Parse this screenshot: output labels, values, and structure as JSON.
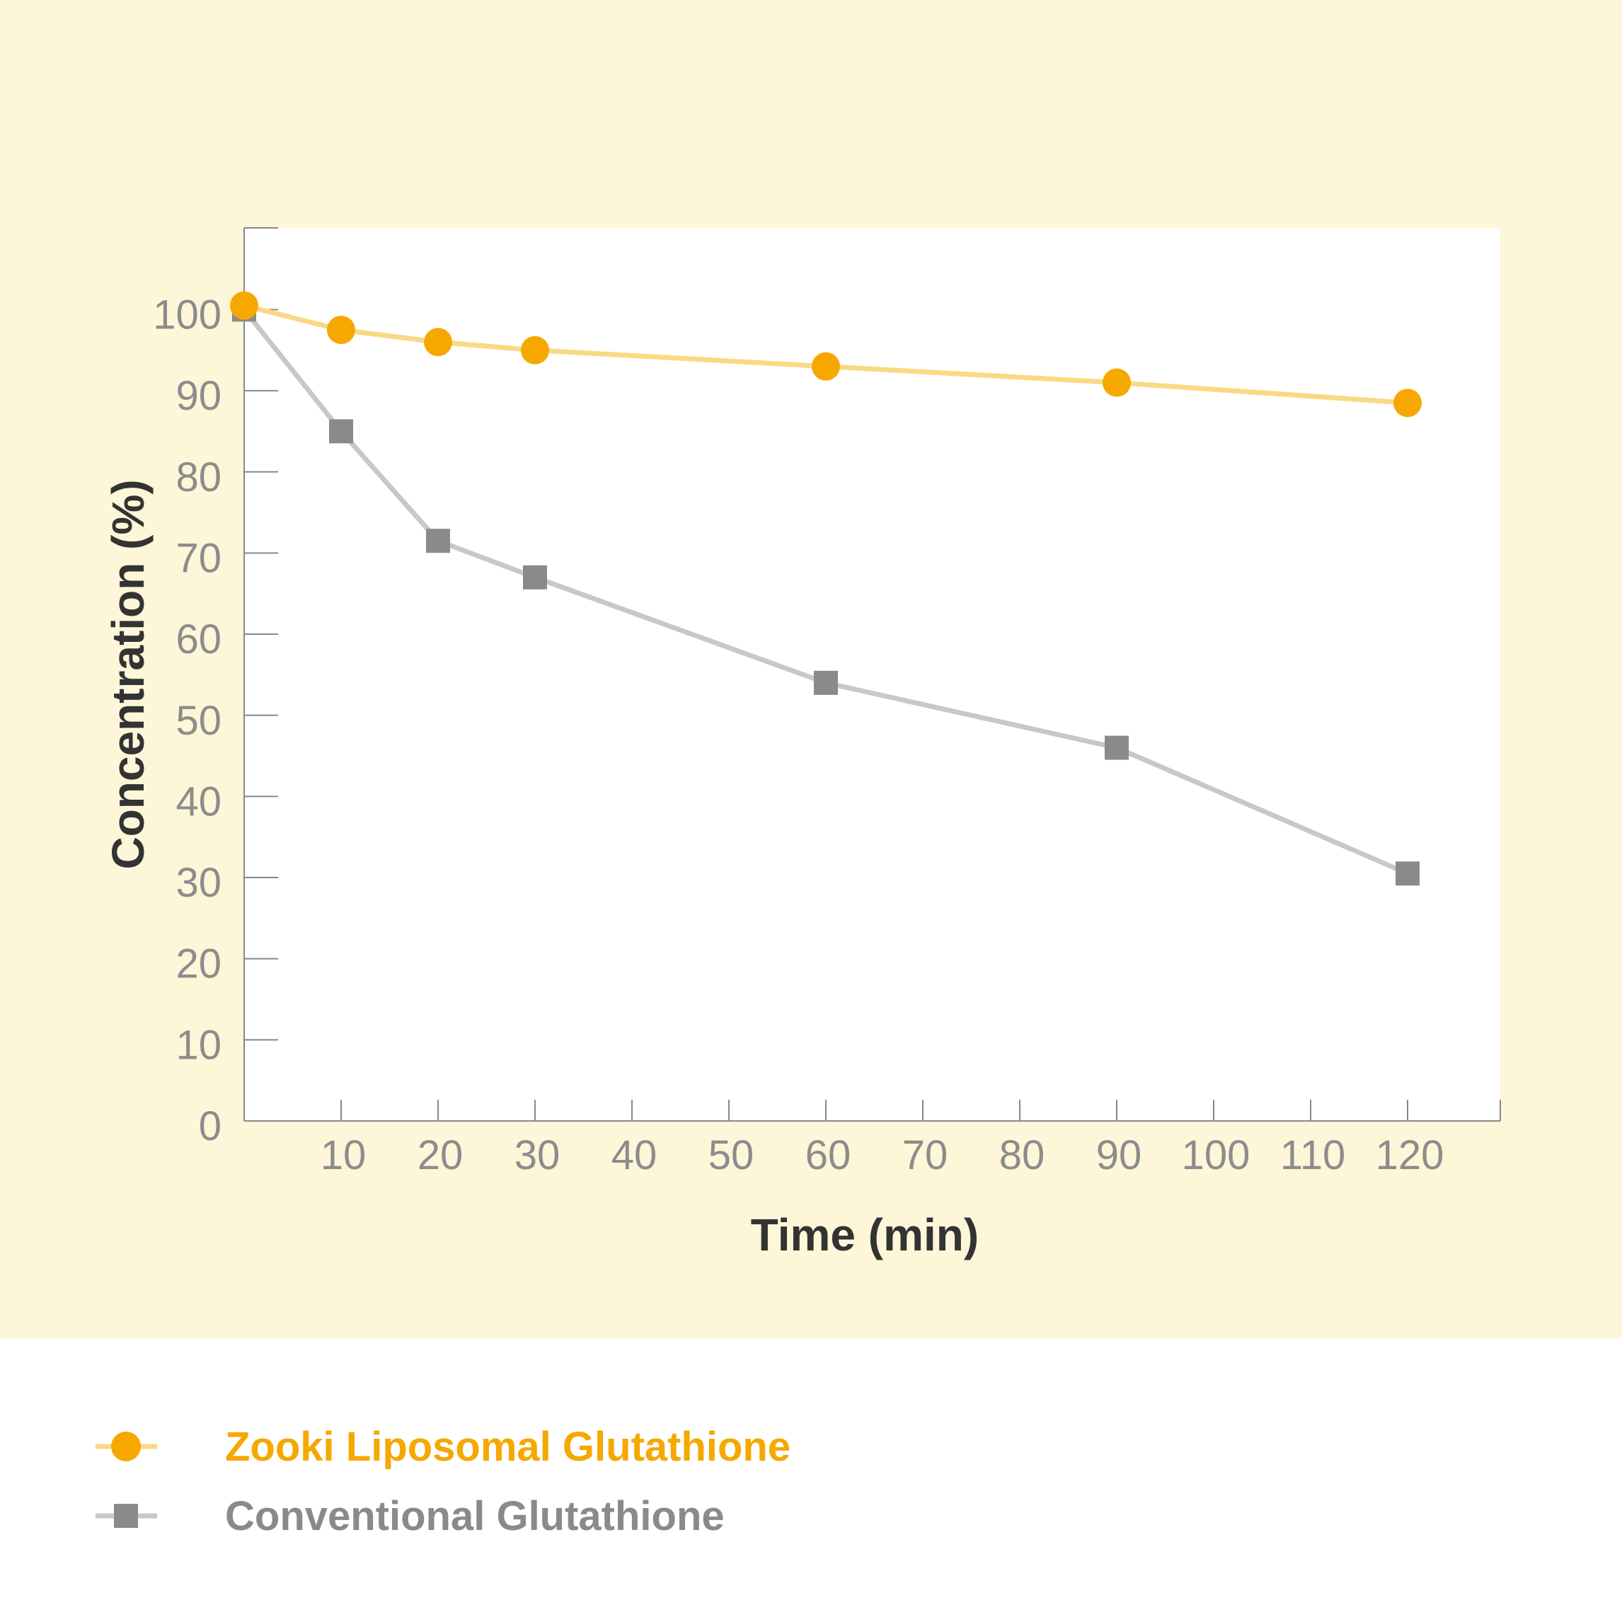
{
  "chart_data": {
    "type": "line",
    "xlabel": "Time (min)",
    "ylabel": "Concentration (%)",
    "xlim": [
      0,
      130
    ],
    "ylim": [
      0,
      110
    ],
    "x_ticks": [
      10,
      20,
      30,
      40,
      50,
      60,
      70,
      80,
      90,
      100,
      110,
      120
    ],
    "y_ticks": [
      0,
      10,
      20,
      30,
      40,
      50,
      60,
      70,
      80,
      90,
      100
    ],
    "grid": false,
    "legend_position": "bottom-left",
    "series": [
      {
        "name": "Zooki Liposomal Glutathione",
        "marker": "circle",
        "line_color": "#f9d986",
        "marker_color": "#f7a800",
        "label_color": "#f5a800",
        "x": [
          0,
          10,
          20,
          30,
          60,
          90,
          120
        ],
        "values": [
          100.5,
          97.5,
          96,
          95,
          93,
          91,
          88.5
        ]
      },
      {
        "name": "Conventional Glutathione",
        "marker": "square",
        "line_color": "#c8c8c8",
        "marker_color": "#8a8a8a",
        "label_color": "#8a8a8a",
        "x": [
          0,
          10,
          20,
          30,
          60,
          90,
          120
        ],
        "values": [
          100,
          85,
          71.5,
          67,
          54,
          46,
          30.5
        ]
      }
    ]
  },
  "colors": {
    "page_background": "#fdf6d8",
    "plot_background": "#ffffff",
    "axis": "#888888",
    "tick_label": "#8c8c8c",
    "axis_title": "#333333"
  }
}
